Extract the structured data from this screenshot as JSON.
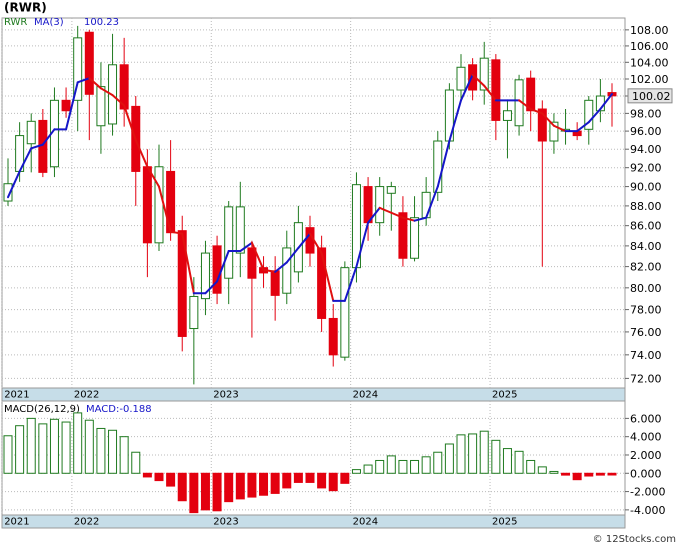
{
  "chart_data": [
    {
      "type": "candlestick",
      "title": "(RWR)",
      "name": "RWR",
      "log_scale": true,
      "grid": true,
      "up_color": "#1f7a1f",
      "down_color": "#e3000f",
      "open": [
        88.5,
        91.6,
        94.6,
        97.2,
        92.1,
        99.5,
        99.5,
        107.7,
        96.6,
        96.8,
        103.7,
        98.8,
        92.1,
        84.3,
        91.6,
        85.5,
        76.3,
        79,
        84,
        80.9,
        83.3,
        83.8,
        81.9,
        81.6,
        79.5,
        81.5,
        85.8,
        83.8,
        77.2,
        73.8,
        81.9,
        90,
        86.3,
        89.3,
        87.3,
        82.8,
        86.8,
        89.4,
        94.9,
        100.7,
        103.7,
        100.7,
        104.3,
        97.2,
        96.6,
        102.1,
        98.5,
        94.9,
        96,
        96,
        96.2,
        98.3,
        100.4
      ],
      "high": [
        93,
        97,
        98,
        98.5,
        101,
        101,
        108.5,
        108,
        104,
        107.5,
        107,
        100,
        94,
        94.5,
        95,
        87,
        81,
        84.5,
        85,
        88.5,
        90.5,
        84.5,
        83,
        83,
        85.5,
        88,
        87,
        85,
        78.5,
        82.5,
        91.5,
        91,
        91,
        90.5,
        89,
        89,
        91,
        96,
        101.5,
        105,
        104.5,
        106.5,
        105,
        99.5,
        102.5,
        103,
        99.5,
        98,
        98.5,
        97,
        100,
        102,
        101.5
      ],
      "low": [
        88,
        90.5,
        91.5,
        91,
        91,
        97.5,
        96,
        95,
        93.5,
        95.5,
        96.5,
        88,
        81,
        83.5,
        84.5,
        74.3,
        71.5,
        77.5,
        78.5,
        78.5,
        81,
        75.5,
        80,
        77,
        78.5,
        80.5,
        82,
        76,
        73,
        73.5,
        80.5,
        84.5,
        85,
        85.5,
        82,
        82.5,
        86,
        88.5,
        94,
        99.5,
        99.5,
        99,
        95,
        93,
        95.5,
        96,
        82,
        93.5,
        94.5,
        95,
        94.5,
        97,
        96.5
      ],
      "close": [
        90.3,
        95.5,
        97.1,
        91.5,
        99.5,
        98.3,
        107,
        100.2,
        101.1,
        103.7,
        98.5,
        91.6,
        84.3,
        92.1,
        85.3,
        75.6,
        79.2,
        83.3,
        79.5,
        87.9,
        87.9,
        80.9,
        81.4,
        79.3,
        83.8,
        86.3,
        83.3,
        77.2,
        74.0,
        81.9,
        90.2,
        86.3,
        90,
        90,
        82.8,
        86.8,
        89.4,
        94.9,
        100.7,
        103.4,
        100.7,
        104.5,
        97.2,
        98.3,
        101.9,
        98.3,
        94.9,
        97,
        96.2,
        95.5,
        99.5,
        100,
        100.02
      ],
      "ma": {
        "name": "MA(3)",
        "up_color": "#1616c8",
        "down_color": "#e01010",
        "values": [
          88.9,
          91.6,
          94.1,
          94.5,
          96.2,
          96.2,
          101.6,
          102.1,
          100.9,
          100.1,
          98.9,
          95.0,
          92.1,
          90.0,
          85.4,
          85.2,
          79.5,
          79.5,
          80.6,
          83.5,
          83.5,
          84.3,
          81.7,
          81.5,
          82.4,
          83.8,
          85.2,
          83.3,
          78.8,
          78.8,
          82.0,
          86.3,
          87.8,
          87.3,
          86.8,
          86.5,
          86.8,
          90.0,
          94.9,
          99.5,
          102.5,
          101.2,
          99.5,
          99.5,
          99.5,
          98.5,
          98.0,
          96.6,
          96.0,
          96.0,
          97.0,
          98.5,
          100.23
        ]
      },
      "current_price": {
        "value": 100.02,
        "label": "100.02"
      },
      "ylim": [
        71.2,
        109.5
      ],
      "yticks": [
        {
          "value": 72,
          "label": "72.00"
        },
        {
          "value": 74,
          "label": "74.00"
        },
        {
          "value": 76,
          "label": "76.00"
        },
        {
          "value": 78,
          "label": "78.00"
        },
        {
          "value": 80,
          "label": "80.00"
        },
        {
          "value": 82,
          "label": "82.00"
        },
        {
          "value": 84,
          "label": "84.00"
        },
        {
          "value": 86,
          "label": "86.00"
        },
        {
          "value": 88,
          "label": "88.00"
        },
        {
          "value": 90,
          "label": "90.00"
        },
        {
          "value": 92,
          "label": "92.00"
        },
        {
          "value": 94,
          "label": "94.00"
        },
        {
          "value": 96,
          "label": "96.00"
        },
        {
          "value": 98,
          "label": "98.00"
        },
        {
          "value": 100,
          "label": "100.00"
        },
        {
          "value": 102,
          "label": "102.00"
        },
        {
          "value": 104,
          "label": "104.00"
        },
        {
          "value": 106,
          "label": "106.00"
        },
        {
          "value": 108,
          "label": "108.00"
        }
      ],
      "xticks": [
        {
          "value": -0.5,
          "label": "2021"
        },
        {
          "value": 5.5,
          "label": "2022"
        },
        {
          "value": 17.5,
          "label": "2023"
        },
        {
          "value": 29.5,
          "label": "2024"
        },
        {
          "value": 41.5,
          "label": "2025"
        }
      ]
    },
    {
      "type": "bar",
      "title": "MACD(26,12,9)",
      "readout": "MACD:-0.188",
      "grid": true,
      "positive_color": "#1f7a1f",
      "negative_color": "#e3000f",
      "values": [
        4.1,
        5.2,
        6.0,
        5.4,
        5.9,
        5.6,
        6.6,
        5.8,
        4.9,
        4.7,
        4.0,
        2.3,
        -0.4,
        -0.8,
        -1.4,
        -3.0,
        -4.3,
        -4.0,
        -4.1,
        -3.1,
        -2.8,
        -2.6,
        -2.4,
        -2.2,
        -1.6,
        -1.0,
        -1.0,
        -1.6,
        -1.9,
        -1.1,
        0.4,
        0.9,
        1.4,
        1.9,
        1.4,
        1.4,
        1.8,
        2.3,
        3.2,
        4.2,
        4.3,
        4.6,
        3.6,
        2.7,
        2.4,
        1.4,
        0.7,
        0.2,
        -0.2,
        -0.7,
        -0.3,
        -0.2,
        -0.188
      ],
      "ylim": [
        -4.56,
        7.9
      ],
      "yticks": [
        {
          "value": -4,
          "label": "-4.000"
        },
        {
          "value": -2,
          "label": "-2.000"
        },
        {
          "value": 0,
          "label": "0.000"
        },
        {
          "value": 2,
          "label": "2.000"
        },
        {
          "value": 4,
          "label": "4.000"
        },
        {
          "value": 6,
          "label": "6.000"
        }
      ],
      "xticks": [
        {
          "value": -0.5,
          "label": "2021"
        },
        {
          "value": 5.5,
          "label": "2022"
        },
        {
          "value": 17.5,
          "label": "2023"
        },
        {
          "value": 29.5,
          "label": "2024"
        },
        {
          "value": 41.5,
          "label": "2025"
        }
      ]
    }
  ],
  "watermark": "© 12Stocks.com"
}
